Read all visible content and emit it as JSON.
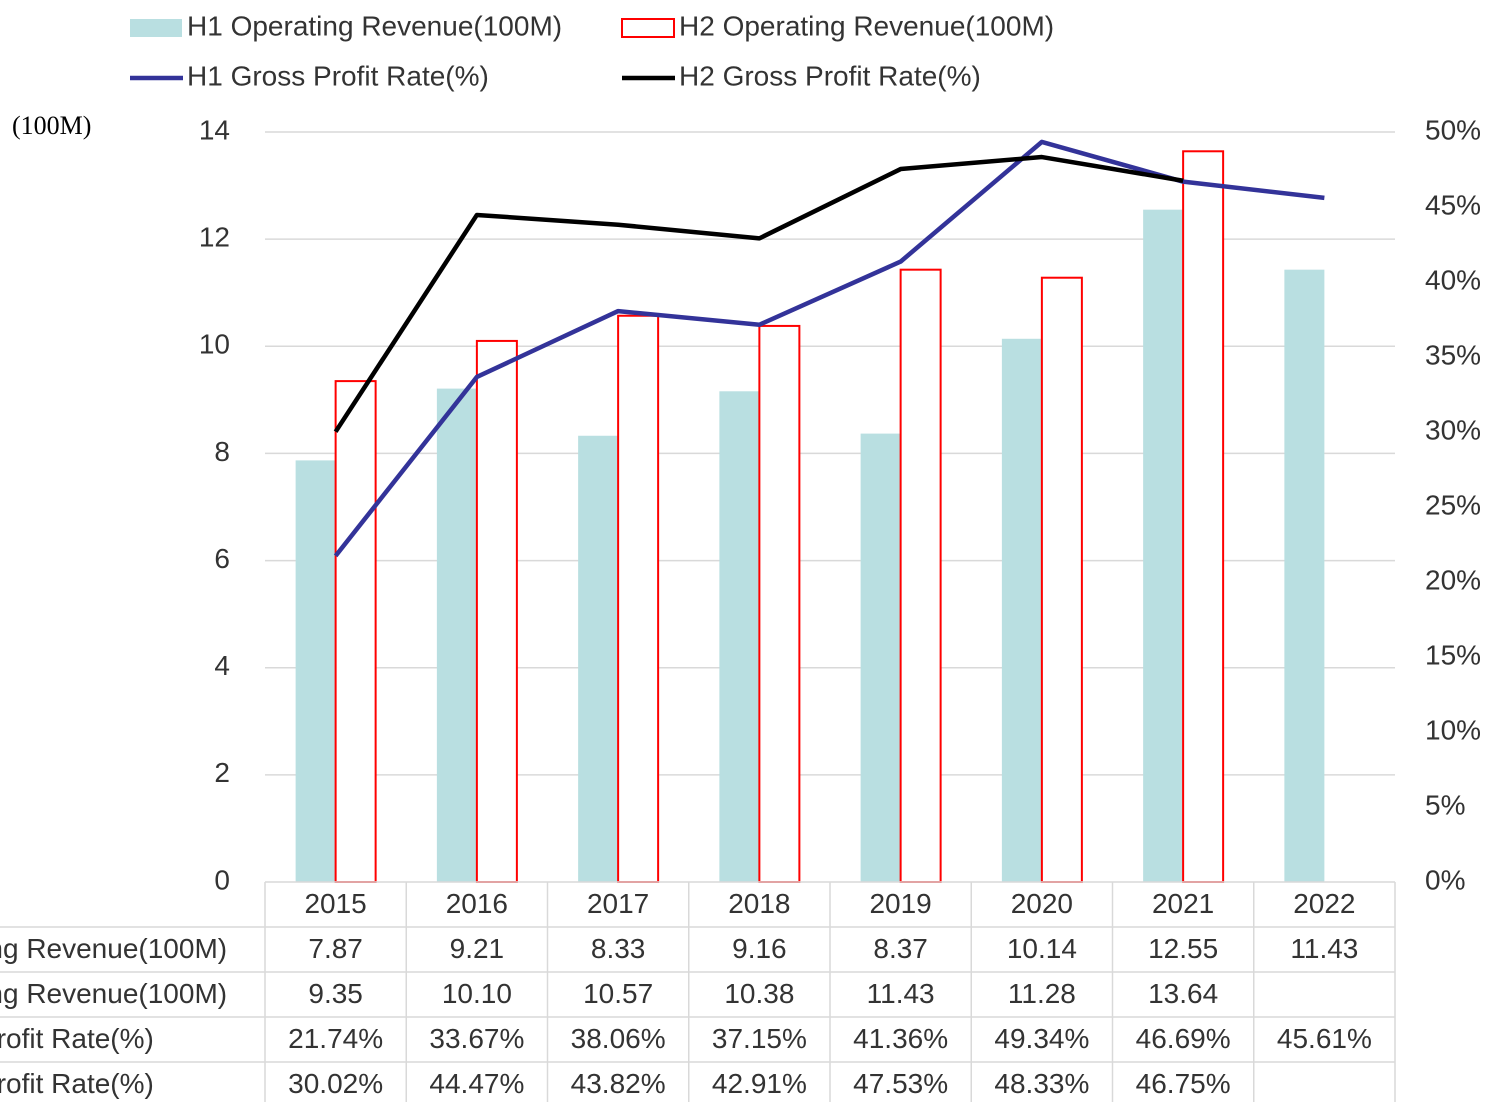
{
  "chart_data": {
    "type": "bar",
    "y_unit_label": "(100M)",
    "categories": [
      "2015",
      "2016",
      "2017",
      "2018",
      "2019",
      "2020",
      "2021",
      "2022"
    ],
    "series": [
      {
        "name": "H1 Operating Revenue(100M)",
        "type": "bar",
        "color": "#b9dfe1",
        "outline": false,
        "values": [
          7.87,
          9.21,
          8.33,
          9.16,
          8.37,
          10.14,
          12.55,
          11.43
        ],
        "value_labels": [
          "7.87",
          "9.21",
          "8.33",
          "9.16",
          "8.37",
          "10.14",
          "12.55",
          "11.43"
        ]
      },
      {
        "name": "H2 Operating Revenue(100M)",
        "type": "bar",
        "color": "#ff0000",
        "outline": true,
        "values": [
          9.35,
          10.1,
          10.57,
          10.38,
          11.43,
          11.28,
          13.64,
          null
        ],
        "value_labels": [
          "9.35",
          "10.10",
          "10.57",
          "10.38",
          "11.43",
          "11.28",
          "13.64",
          null
        ]
      },
      {
        "name": "H1 Gross Profit Rate(%)",
        "type": "line",
        "axis": "y2",
        "color": "#333399",
        "values": [
          21.74,
          33.67,
          38.06,
          37.15,
          41.36,
          49.34,
          46.69,
          45.61
        ],
        "value_labels": [
          "21.74%",
          "33.67%",
          "38.06%",
          "37.15%",
          "41.36%",
          "49.34%",
          "46.69%",
          "45.61%"
        ]
      },
      {
        "name": "H2 Gross Profit Rate(%)",
        "type": "line",
        "axis": "y2",
        "color": "#000000",
        "values": [
          30.02,
          44.47,
          43.82,
          42.91,
          47.53,
          48.33,
          46.75,
          null
        ],
        "value_labels": [
          "30.02%",
          "44.47%",
          "43.82%",
          "42.91%",
          "47.53%",
          "48.33%",
          "46.75%",
          null
        ]
      }
    ],
    "ylim": [
      0,
      14
    ],
    "yticks": [
      0,
      2,
      4,
      6,
      8,
      10,
      12,
      14
    ],
    "y2lim": [
      0,
      50
    ],
    "y2ticks": [
      {
        "value": 0,
        "label": "0%"
      },
      {
        "value": 5,
        "label": "5%"
      },
      {
        "value": 10,
        "label": "10%"
      },
      {
        "value": 15,
        "label": "15%"
      },
      {
        "value": 20,
        "label": "20%"
      },
      {
        "value": 25,
        "label": "25%"
      },
      {
        "value": 30,
        "label": "30%"
      },
      {
        "value": 35,
        "label": "35%"
      },
      {
        "value": 40,
        "label": "40%"
      },
      {
        "value": 45,
        "label": "45%"
      },
      {
        "value": 50,
        "label": "50%"
      }
    ],
    "grid": true,
    "legend": "top",
    "data_table": true
  }
}
